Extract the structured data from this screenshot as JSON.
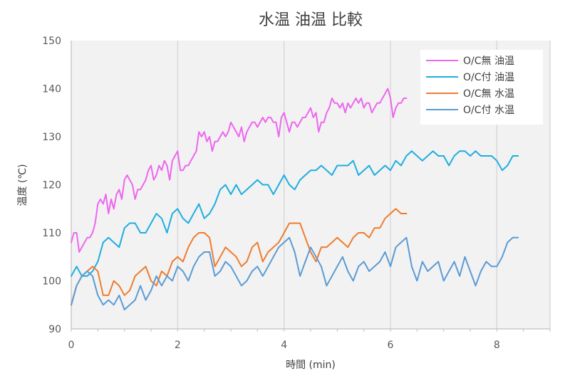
{
  "chart_data": {
    "type": "line",
    "title": "水温 油温 比較",
    "xlabel": "時間 (min)",
    "ylabel": "温度 (℃)",
    "xlim": [
      0,
      9
    ],
    "ylim": [
      90,
      150
    ],
    "xticks": [
      0,
      2,
      4,
      6,
      8
    ],
    "yticks": [
      90,
      100,
      110,
      120,
      130,
      140,
      150
    ],
    "grid": "vertical",
    "legend_position": "top-right",
    "series": [
      {
        "name": "O/C無 油温",
        "color": "#ee66ee",
        "x": [
          0.0,
          0.05,
          0.1,
          0.15,
          0.2,
          0.25,
          0.3,
          0.35,
          0.4,
          0.45,
          0.5,
          0.55,
          0.6,
          0.65,
          0.7,
          0.75,
          0.8,
          0.85,
          0.9,
          0.95,
          1.0,
          1.05,
          1.1,
          1.15,
          1.2,
          1.25,
          1.3,
          1.35,
          1.4,
          1.45,
          1.5,
          1.55,
          1.6,
          1.65,
          1.7,
          1.75,
          1.8,
          1.85,
          1.9,
          1.95,
          2.0,
          2.05,
          2.1,
          2.15,
          2.2,
          2.25,
          2.3,
          2.35,
          2.4,
          2.45,
          2.5,
          2.55,
          2.6,
          2.65,
          2.7,
          2.75,
          2.8,
          2.85,
          2.9,
          2.95,
          3.0,
          3.05,
          3.1,
          3.15,
          3.2,
          3.25,
          3.3,
          3.35,
          3.4,
          3.45,
          3.5,
          3.55,
          3.6,
          3.65,
          3.7,
          3.75,
          3.8,
          3.85,
          3.9,
          3.95,
          4.0,
          4.05,
          4.1,
          4.15,
          4.2,
          4.25,
          4.3,
          4.35,
          4.4,
          4.45,
          4.5,
          4.55,
          4.6,
          4.65,
          4.7,
          4.75,
          4.8,
          4.85,
          4.9,
          4.95,
          5.0,
          5.05,
          5.1,
          5.15,
          5.2,
          5.25,
          5.3,
          5.35,
          5.4,
          5.45,
          5.5,
          5.55,
          5.6,
          5.65,
          5.7,
          5.75,
          5.8,
          5.85,
          5.9,
          5.95,
          6.0,
          6.05,
          6.1,
          6.15,
          6.2,
          6.25,
          6.3
        ],
        "values": [
          108,
          110,
          110,
          106,
          107,
          108,
          109,
          109,
          110,
          112,
          116,
          117,
          116,
          118,
          114,
          117,
          115,
          118,
          119,
          117,
          121,
          122,
          121,
          120,
          117,
          119,
          119,
          120,
          121,
          123,
          124,
          121,
          122,
          124,
          123,
          125,
          124,
          121,
          125,
          126,
          127,
          123,
          123,
          124,
          124,
          125,
          126,
          127,
          131,
          130,
          131,
          129,
          130,
          127,
          129,
          129,
          130,
          131,
          130,
          131,
          133,
          132,
          131,
          130,
          132,
          129,
          131,
          132,
          133,
          133,
          132,
          133,
          134,
          133,
          134,
          134,
          133,
          133,
          130,
          134,
          135,
          133,
          131,
          133,
          133,
          132,
          133,
          134,
          134,
          135,
          136,
          134,
          135,
          131,
          133,
          133,
          135,
          136,
          138,
          137,
          137,
          136,
          137,
          135,
          137,
          136,
          137,
          138,
          137,
          138,
          136,
          137,
          137,
          135,
          136,
          137,
          137,
          138,
          139,
          140,
          138,
          134,
          136,
          137,
          137,
          138,
          138
        ]
      },
      {
        "name": "O/C付 油温",
        "color": "#1eaee0",
        "x": [
          0.0,
          0.1,
          0.2,
          0.3,
          0.4,
          0.5,
          0.6,
          0.7,
          0.8,
          0.9,
          1.0,
          1.1,
          1.2,
          1.3,
          1.4,
          1.5,
          1.6,
          1.7,
          1.8,
          1.9,
          2.0,
          2.1,
          2.2,
          2.3,
          2.4,
          2.5,
          2.6,
          2.7,
          2.8,
          2.9,
          3.0,
          3.1,
          3.2,
          3.3,
          3.4,
          3.5,
          3.6,
          3.7,
          3.8,
          3.9,
          4.0,
          4.1,
          4.2,
          4.3,
          4.4,
          4.5,
          4.6,
          4.7,
          4.8,
          4.9,
          5.0,
          5.1,
          5.2,
          5.3,
          5.4,
          5.5,
          5.6,
          5.7,
          5.8,
          5.9,
          6.0,
          6.1,
          6.2,
          6.3,
          6.4,
          6.5,
          6.6,
          6.7,
          6.8,
          6.9,
          7.0,
          7.1,
          7.2,
          7.3,
          7.4,
          7.5,
          7.6,
          7.7,
          7.8,
          7.9,
          8.0,
          8.1,
          8.2,
          8.3,
          8.4
        ],
        "values": [
          101,
          103,
          101,
          101,
          102,
          104,
          108,
          109,
          108,
          107,
          111,
          112,
          112,
          110,
          110,
          112,
          114,
          113,
          110,
          114,
          115,
          113,
          112,
          114,
          116,
          113,
          114,
          116,
          119,
          120,
          118,
          120,
          118,
          119,
          120,
          121,
          120,
          120,
          118,
          120,
          122,
          120,
          119,
          121,
          122,
          123,
          123,
          124,
          123,
          122,
          124,
          124,
          124,
          125,
          122,
          123,
          124,
          122,
          123,
          124,
          123,
          125,
          124,
          126,
          127,
          126,
          125,
          126,
          127,
          126,
          126,
          124,
          126,
          127,
          127,
          126,
          127,
          126,
          126,
          126,
          125,
          123,
          124,
          126,
          126
        ]
      },
      {
        "name": "O/C無 水温",
        "color": "#ee7c30",
        "x": [
          0.0,
          0.1,
          0.2,
          0.3,
          0.4,
          0.5,
          0.6,
          0.7,
          0.8,
          0.9,
          1.0,
          1.1,
          1.2,
          1.3,
          1.4,
          1.5,
          1.6,
          1.7,
          1.8,
          1.9,
          2.0,
          2.1,
          2.2,
          2.3,
          2.4,
          2.5,
          2.6,
          2.7,
          2.8,
          2.9,
          3.0,
          3.1,
          3.2,
          3.3,
          3.4,
          3.5,
          3.6,
          3.7,
          3.8,
          3.9,
          4.0,
          4.1,
          4.2,
          4.3,
          4.4,
          4.5,
          4.6,
          4.7,
          4.8,
          4.9,
          5.0,
          5.1,
          5.2,
          5.3,
          5.4,
          5.5,
          5.6,
          5.7,
          5.8,
          5.9,
          6.0,
          6.1,
          6.2,
          6.3
        ],
        "values": [
          95,
          99,
          101,
          102,
          103,
          102,
          97,
          97,
          100,
          99,
          97,
          98,
          101,
          102,
          103,
          100,
          99,
          102,
          101,
          104,
          105,
          104,
          107,
          109,
          110,
          110,
          109,
          103,
          105,
          107,
          106,
          105,
          103,
          104,
          107,
          108,
          104,
          106,
          107,
          108,
          110,
          112,
          112,
          112,
          109,
          106,
          104,
          107,
          107,
          108,
          109,
          108,
          107,
          109,
          110,
          110,
          109,
          111,
          111,
          113,
          114,
          115,
          114,
          114
        ]
      },
      {
        "name": "O/C付 水温",
        "color": "#5b9bd5",
        "x": [
          0.0,
          0.1,
          0.2,
          0.3,
          0.4,
          0.5,
          0.6,
          0.7,
          0.8,
          0.9,
          1.0,
          1.1,
          1.2,
          1.3,
          1.4,
          1.5,
          1.6,
          1.7,
          1.8,
          1.9,
          2.0,
          2.1,
          2.2,
          2.3,
          2.4,
          2.5,
          2.6,
          2.7,
          2.8,
          2.9,
          3.0,
          3.1,
          3.2,
          3.3,
          3.4,
          3.5,
          3.6,
          3.7,
          3.8,
          3.9,
          4.0,
          4.1,
          4.2,
          4.3,
          4.4,
          4.5,
          4.6,
          4.7,
          4.8,
          4.9,
          5.0,
          5.1,
          5.2,
          5.3,
          5.4,
          5.5,
          5.6,
          5.7,
          5.8,
          5.9,
          6.0,
          6.1,
          6.2,
          6.3,
          6.4,
          6.5,
          6.6,
          6.7,
          6.8,
          6.9,
          7.0,
          7.1,
          7.2,
          7.3,
          7.4,
          7.5,
          7.6,
          7.7,
          7.8,
          7.9,
          8.0,
          8.1,
          8.2,
          8.3,
          8.4
        ],
        "values": [
          95,
          99,
          101,
          102,
          101,
          97,
          95,
          96,
          95,
          97,
          94,
          95,
          96,
          99,
          96,
          98,
          101,
          99,
          101,
          100,
          103,
          102,
          100,
          103,
          105,
          106,
          106,
          101,
          102,
          104,
          103,
          101,
          99,
          100,
          102,
          103,
          101,
          103,
          105,
          107,
          108,
          109,
          106,
          101,
          104,
          107,
          105,
          103,
          99,
          101,
          103,
          105,
          102,
          100,
          103,
          104,
          102,
          103,
          104,
          106,
          103,
          107,
          108,
          109,
          103,
          100,
          104,
          102,
          103,
          104,
          100,
          102,
          104,
          101,
          105,
          102,
          99,
          102,
          104,
          103,
          103,
          105,
          108,
          109,
          109
        ]
      }
    ]
  }
}
